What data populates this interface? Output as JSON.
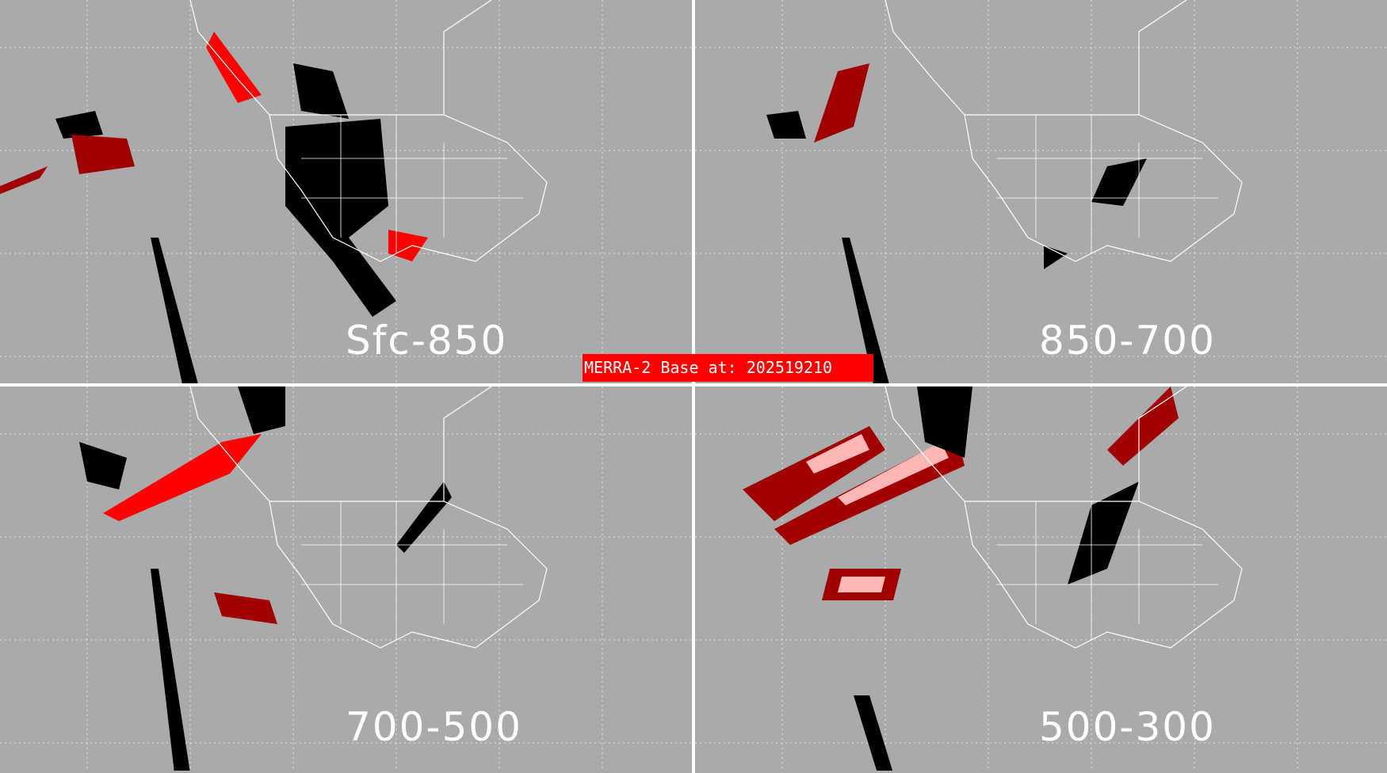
{
  "banner": {
    "text": "MERRA-2 Base at: 202519210"
  },
  "panels": [
    {
      "label": "Sfc-850"
    },
    {
      "label": "850-700"
    },
    {
      "label": "700-500"
    },
    {
      "label": "500-300"
    }
  ],
  "colors": {
    "background": "#aaaaaa",
    "outline": "#ffffff",
    "category_black": "#000000",
    "category_red": "#ff0000",
    "category_darkred": "#a00000",
    "category_pink": "#ffb6b6",
    "banner": "#ff0000"
  }
}
